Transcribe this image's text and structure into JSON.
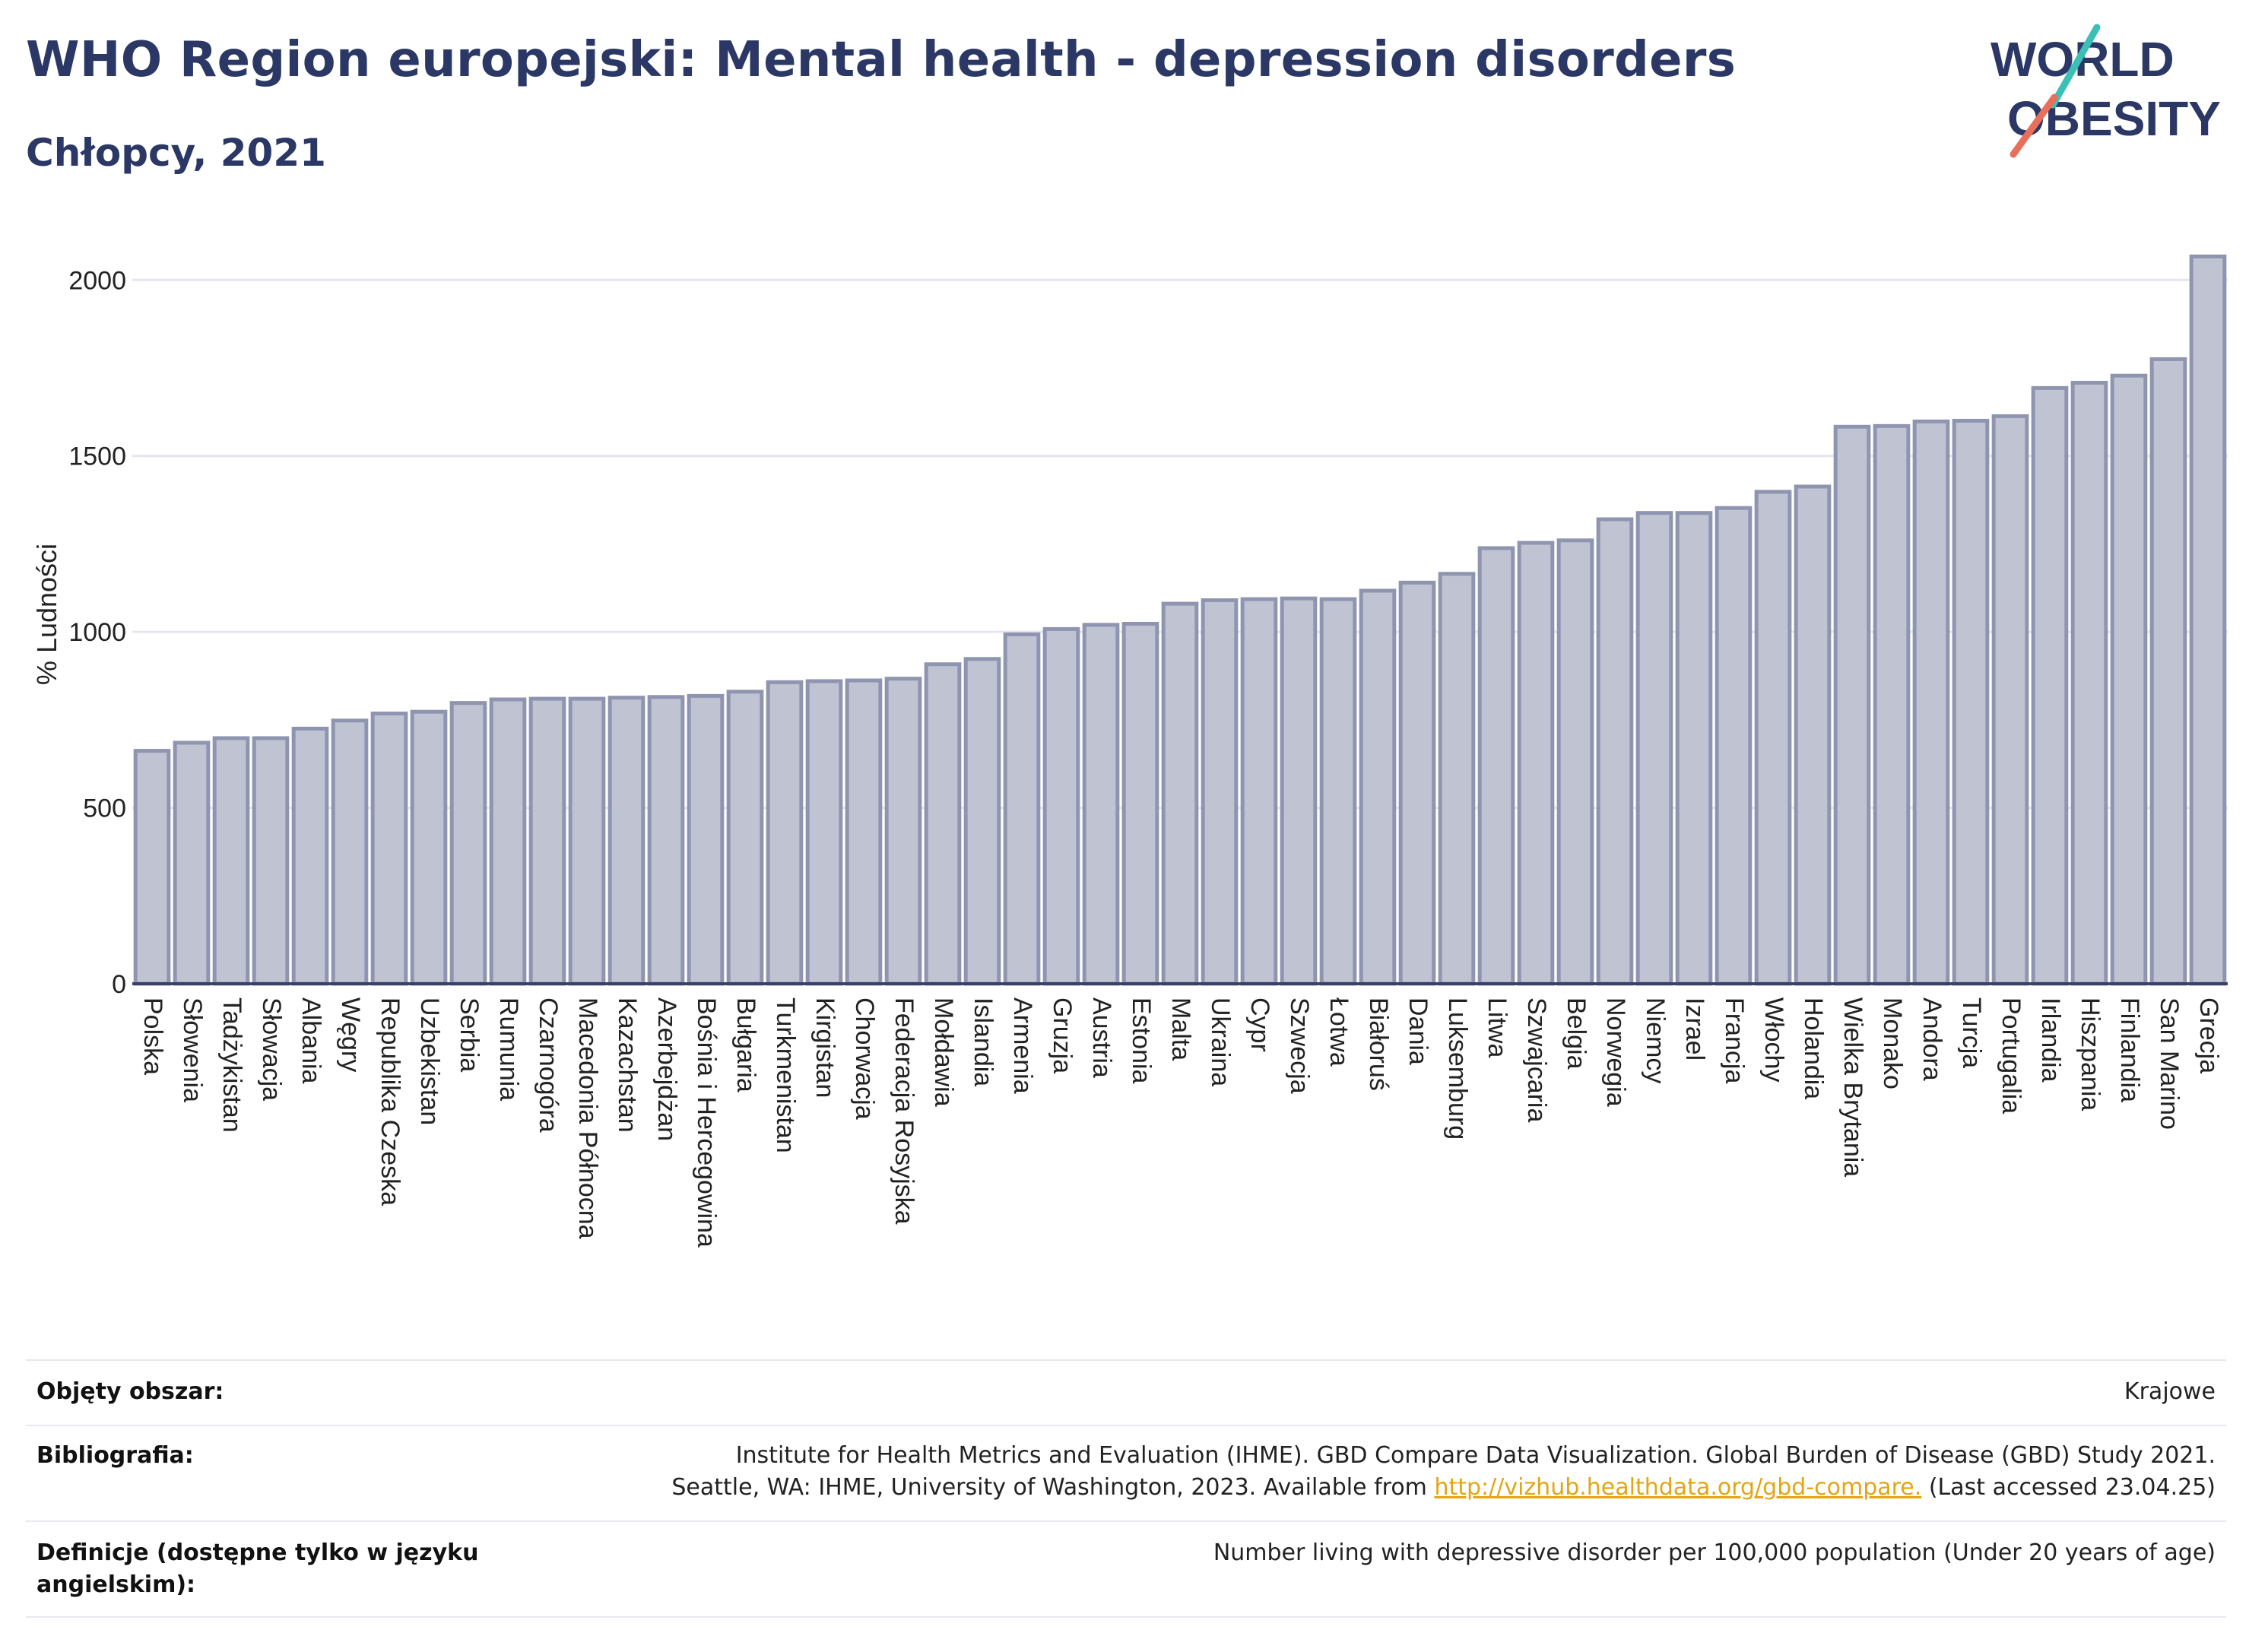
{
  "header": {
    "title": "WHO Region europejski: Mental health - depression disorders",
    "subtitle": "Chłopcy, 2021"
  },
  "logo": {
    "line1": "WORLD",
    "line2": "OBESITY",
    "colors": {
      "text": "#2b3866",
      "slash_top": "#3bbfb6",
      "slash_bottom": "#e8705a"
    }
  },
  "chart_data": {
    "type": "bar",
    "title": "",
    "xlabel": "",
    "ylabel": "% Ludności",
    "ylim": [
      0,
      2100
    ],
    "yticks": [
      0,
      500,
      1000,
      1500,
      2000
    ],
    "grid": true,
    "bar_color": "#bfc3d2",
    "bar_edge_color": "#8f95b0",
    "categories": [
      "Polska",
      "Słowenia",
      "Tadżykistan",
      "Słowacja",
      "Albania",
      "Węgry",
      "Republika Czeska",
      "Uzbekistan",
      "Serbia",
      "Rumunia",
      "Czarnogóra",
      "Macedonia Północna",
      "Kazachstan",
      "Azerbejdżan",
      "Bośnia i Hercegowina",
      "Bułgaria",
      "Turkmenistan",
      "Kirgistan",
      "Chorwacja",
      "Federacja Rosyjska",
      "Mołdawia",
      "Islandia",
      "Armenia",
      "Gruzja",
      "Austria",
      "Estonia",
      "Malta",
      "Ukraina",
      "Cypr",
      "Szwecja",
      "Łotwa",
      "Białoruś",
      "Dania",
      "Luksemburg",
      "Litwa",
      "Szwajcaria",
      "Belgia",
      "Norwegia",
      "Niemcy",
      "Izrael",
      "Francja",
      "Włochy",
      "Holandia",
      "Wielka Brytania",
      "Monako",
      "Andora",
      "Turcja",
      "Portugalia",
      "Irlandia",
      "Hiszpania",
      "Finlandia",
      "San Marino",
      "Grecja"
    ],
    "values": [
      662,
      685,
      698,
      698,
      725,
      748,
      768,
      773,
      798,
      808,
      810,
      810,
      813,
      815,
      818,
      830,
      857,
      860,
      862,
      867,
      908,
      923,
      993,
      1008,
      1020,
      1023,
      1080,
      1090,
      1093,
      1095,
      1093,
      1117,
      1140,
      1165,
      1238,
      1253,
      1260,
      1320,
      1338,
      1338,
      1352,
      1398,
      1413,
      1583,
      1585,
      1598,
      1600,
      1613,
      1693,
      1708,
      1728,
      1775,
      2067
    ]
  },
  "info": {
    "rows": [
      {
        "label": "Objęty obszar:",
        "value": "Krajowe"
      },
      {
        "label": "Bibliografia:",
        "value_line1": "Institute for Health Metrics and Evaluation (IHME). GBD Compare Data Visualization. Global Burden of Disease (GBD) Study 2021.",
        "value_line2_pre": "Seattle, WA: IHME, University of Washington, 2023. Available from ",
        "link": "http://vizhub.healthdata.org/gbd-compare.",
        "value_line2_post": " (Last accessed 23.04.25)"
      },
      {
        "label": "Definicje (dostępne tylko w języku angielskim):",
        "value": "Number living with depressive disorder per 100,000 population (Under 20 years of age)"
      }
    ]
  }
}
